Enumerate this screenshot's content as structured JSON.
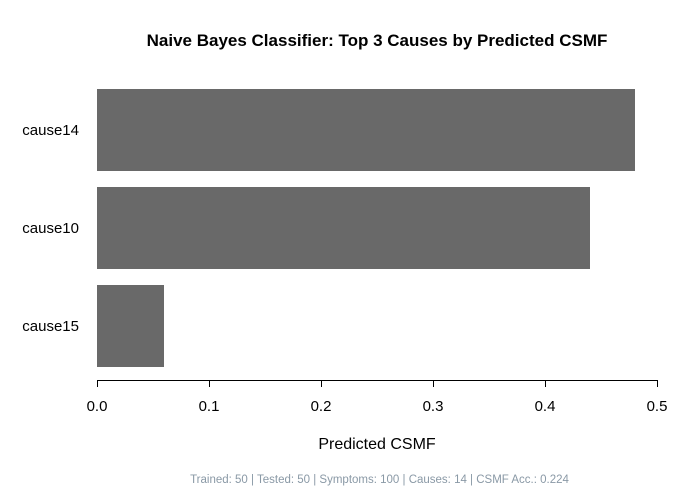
{
  "chart_data": {
    "type": "bar",
    "orientation": "horizontal",
    "title": "Naive Bayes Classifier: Top 3 Causes by Predicted CSMF",
    "categories": [
      "cause14",
      "cause10",
      "cause15"
    ],
    "values": [
      0.48,
      0.44,
      0.06
    ],
    "xlabel": "Predicted CSMF",
    "ylabel": "",
    "xlim": [
      0.0,
      0.5
    ],
    "xticks": [
      0.0,
      0.1,
      0.2,
      0.3,
      0.4,
      0.5
    ],
    "xtick_labels": [
      "0.0",
      "0.1",
      "0.2",
      "0.3",
      "0.4",
      "0.5"
    ],
    "bar_color": "#696969",
    "grid": false,
    "legend": "none"
  },
  "footer": {
    "text": "Trained: 50 | Tested: 50 | Symptoms: 100 | Causes: 14 | CSMF Acc.: 0.224",
    "color": "#8a99a6"
  }
}
